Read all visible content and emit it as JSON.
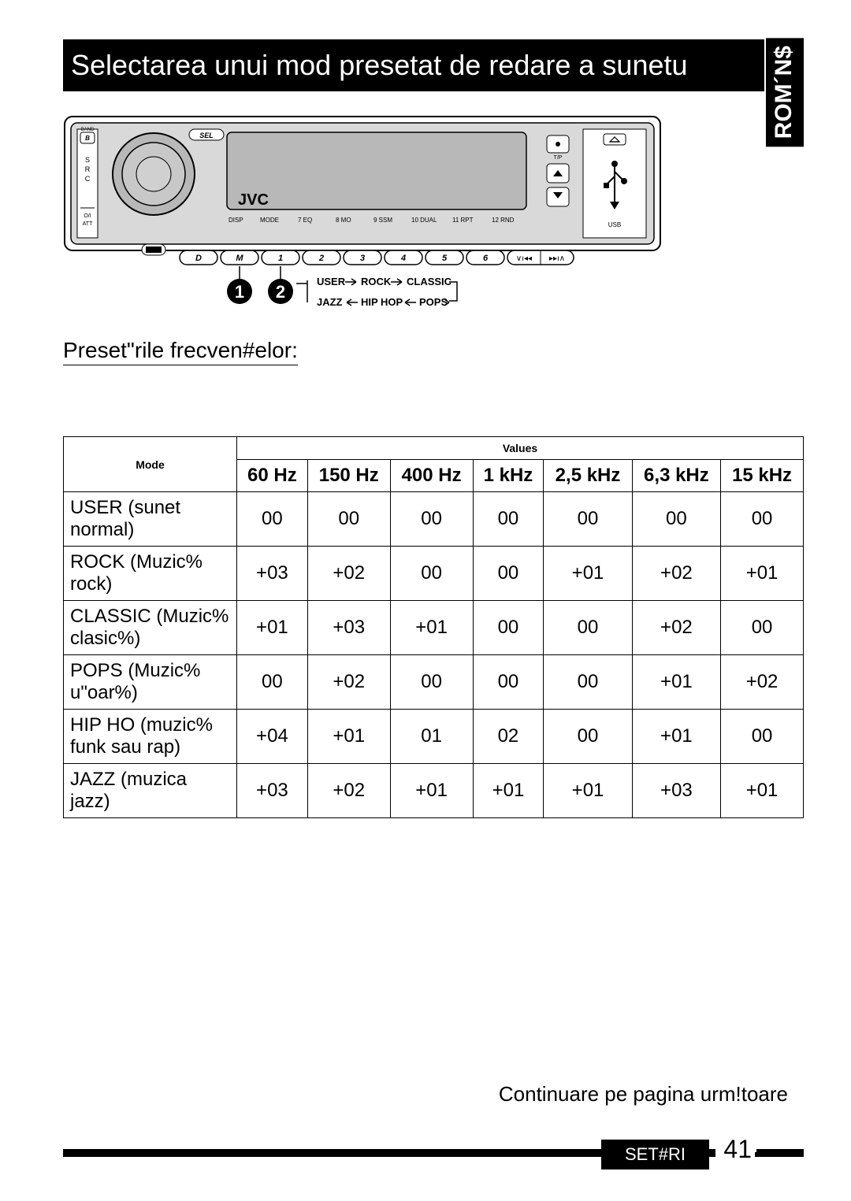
{
  "title": "Selectarea unui mod presetat de redare a sunetu",
  "lang_tab": "ROM´N$",
  "subtitle": "Preset\"rile frecven#elor:",
  "continue_text": "Continuare pe pagina urm!toare",
  "footer_badge": "SET#RI",
  "page_number": "41",
  "radio": {
    "brand": "JVC",
    "labels": [
      "DISP",
      "MODE",
      "7 EQ",
      "8 MO",
      "9 SSM",
      "10 DUAL",
      "11 RPT",
      "12 RND"
    ],
    "usb": "USB",
    "tp": "T/P",
    "band": "BAND",
    "src": [
      "S",
      "R",
      "C"
    ],
    "att": [
      "O/I",
      "ATT"
    ],
    "preset_btns": [
      "D",
      "M",
      "1",
      "2",
      "3",
      "4",
      "5",
      "6"
    ]
  },
  "flow": {
    "step1": "1",
    "step2": "2",
    "user": "USER",
    "rock": "ROCK",
    "classic": "CLASSIC",
    "jazz": "JAZZ",
    "hiphop": "HIP HOP",
    "pops": "POPS"
  },
  "table": {
    "header_mode": "Mode",
    "header_values": "Values",
    "freq_cols": [
      "60 Hz",
      "150 Hz",
      "400 Hz",
      "1 kHz",
      "2,5 kHz",
      "6,3 kHz",
      "15 kHz"
    ],
    "rows": [
      {
        "label": "USER (sunet normal)",
        "vals": [
          "00",
          "00",
          "00",
          "00",
          "00",
          "00",
          "00"
        ]
      },
      {
        "label": "ROCK (Muzic% rock)",
        "vals": [
          "+03",
          "+02",
          "00",
          "00",
          "+01",
          "+02",
          "+01"
        ]
      },
      {
        "label": "CLASSIC (Muzic% clasic%)",
        "vals": [
          "+01",
          "+03",
          "+01",
          "00",
          "00",
          "+02",
          "00"
        ]
      },
      {
        "label": "POPS (Muzic% u\"oar%)",
        "vals": [
          "00",
          "+02",
          "00",
          "00",
          "00",
          "+01",
          "+02"
        ]
      },
      {
        "label": "HIP HO (muzic% funk sau rap)",
        "vals": [
          "+04",
          "+01",
          "01",
          "02",
          "00",
          "+01",
          "00"
        ]
      },
      {
        "label": "JAZZ (muzica jazz)",
        "vals": [
          "+03",
          "+02",
          "+01",
          "+01",
          "+01",
          "+03",
          "+01"
        ]
      }
    ]
  },
  "colors": {
    "bg": "#ffffff",
    "fg": "#000000",
    "panel": "#d9d9d9",
    "screen": "#b8b8b8"
  }
}
